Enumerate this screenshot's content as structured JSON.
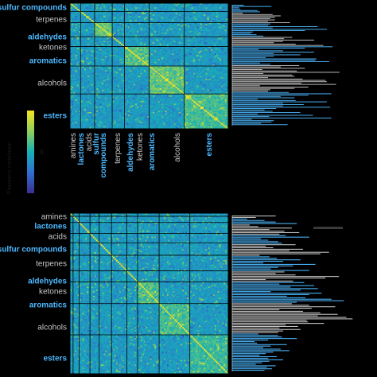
{
  "chart_data": [
    {
      "type": "heatmap",
      "panel": "top",
      "row_groups": [
        {
          "label": "sulfur compounds",
          "color": "#4db8ff",
          "size": 6
        },
        {
          "label": "terpenes",
          "color": "#c8c8c8",
          "size": 8
        },
        {
          "label": "aldehydes",
          "color": "#4db8ff",
          "size": 10
        },
        {
          "label": "ketones",
          "color": "#c8c8c8",
          "size": 7
        },
        {
          "label": "aromatics",
          "color": "#4db8ff",
          "size": 14
        },
        {
          "label": "alcohols",
          "color": "#c8c8c8",
          "size": 20
        },
        {
          "label": "esters",
          "color": "#4db8ff",
          "size": 25
        }
      ],
      "col_groups": [
        {
          "label": "amines",
          "color": "#c8c8c8"
        },
        {
          "label": "lactones",
          "color": "#4db8ff"
        },
        {
          "label": "acids",
          "color": "#c8c8c8"
        },
        {
          "label": "sulfur compounds",
          "color": "#4db8ff"
        },
        {
          "label": "terpenes",
          "color": "#c8c8c8"
        },
        {
          "label": "aldehydes",
          "color": "#4db8ff"
        },
        {
          "label": "ketones",
          "color": "#c8c8c8"
        },
        {
          "label": "aromatics",
          "color": "#4db8ff"
        },
        {
          "label": "alcohols",
          "color": "#c8c8c8"
        },
        {
          "label": "esters",
          "color": "#4db8ff"
        }
      ],
      "col_label_lines": [
        {
          "text": "amines",
          "color": "#c8c8c8"
        },
        {
          "text": "lactones",
          "color": "#4db8ff"
        },
        {
          "text": "acids",
          "color": "#c8c8c8"
        },
        {
          "text": "sulfur",
          "color": "#4db8ff"
        },
        {
          "text": "compounds",
          "color": "#4db8ff"
        },
        {
          "text": "terpenes",
          "color": "#c8c8c8"
        },
        {
          "text": "aldehydes",
          "color": "#4db8ff"
        },
        {
          "text": "ketones",
          "color": "#c8c8c8"
        },
        {
          "text": "aromatics",
          "color": "#4db8ff"
        },
        {
          "text": "alcohols",
          "color": "#c8c8c8"
        },
        {
          "text": "esters",
          "color": "#4db8ff"
        }
      ],
      "colorbar": {
        "label": "Pearson's correlation",
        "tick": "0",
        "colors": [
          "#3a2f8f",
          "#2f6fd1",
          "#17b0b6",
          "#8fcf5a",
          "#f5e51f"
        ]
      },
      "side_bars": {
        "colors": [
          "#4db8ff",
          "#c8c8c8"
        ],
        "values": [
          0.1,
          0.34,
          0.06,
          0.07,
          0.22,
          0.24,
          0.09,
          0.35,
          0.42,
          0.37,
          0.33,
          0.37,
          0.31,
          0.5,
          0.33,
          0.31,
          0.74,
          0.35,
          0.82,
          0.63,
          0.18,
          0.16,
          0.21,
          0.27,
          0.52,
          0.45,
          0.71,
          0.44,
          0.36,
          0.55,
          0.79,
          0.87,
          0.63,
          0.23,
          0.44,
          0.71,
          0.36,
          0.59,
          0.36,
          0.29,
          0.73,
          0.72,
          0.84,
          0.24,
          0.33,
          0.58,
          0.42,
          0.63,
          0.26,
          0.56,
          0.93,
          0.27,
          0.52,
          0.54,
          0.31,
          0.61,
          0.81,
          0.82,
          0.6,
          0.9,
          0.24,
          0.66,
          0.54,
          0.33,
          0.31,
          0.49,
          0.86,
          0.66,
          0.42,
          0.54,
          0.22,
          0.55,
          0.82,
          0.44,
          0.62,
          0.44,
          0.85,
          0.38,
          0.28,
          0.35,
          0.59,
          0.22,
          0.7,
          0.32,
          0.86,
          0.17,
          0.36,
          0.34,
          0.25,
          0.48
        ]
      }
    },
    {
      "type": "heatmap",
      "panel": "bottom",
      "row_groups": [
        {
          "label": "amines",
          "color": "#c8c8c8",
          "size": 2
        },
        {
          "label": "lactones",
          "color": "#4db8ff",
          "size": 4
        },
        {
          "label": "acids",
          "color": "#c8c8c8",
          "size": 7
        },
        {
          "label": "sulfur compounds",
          "color": "#4db8ff",
          "size": 6
        },
        {
          "label": "terpenes",
          "color": "#c8c8c8",
          "size": 8
        },
        {
          "label": "aldehydes",
          "color": "#4db8ff",
          "size": 10
        },
        {
          "label": "ketones",
          "color": "#c8c8c8",
          "size": 7
        },
        {
          "label": "aromatics",
          "color": "#4db8ff",
          "size": 14
        },
        {
          "label": "alcohols",
          "color": "#c8c8c8",
          "size": 20
        },
        {
          "label": "esters",
          "color": "#4db8ff",
          "size": 25
        }
      ],
      "side_bars": {
        "colors": [
          "#4db8ff",
          "#c8c8c8"
        ],
        "values": [
          0.35,
          0.19,
          0.12,
          0.26,
          0.35,
          0.52,
          0.14,
          0.21,
          0.48,
          0.3,
          0.42,
          0.54,
          0.38,
          0.43,
          0.62,
          0.23,
          0.29,
          0.37,
          0.4,
          0.51,
          0.27,
          0.33,
          0.57,
          0.46,
          0.78,
          0.71,
          0.22,
          0.3,
          0.36,
          0.55,
          0.41,
          0.25,
          0.67,
          0.49,
          0.37,
          0.31,
          0.62,
          0.42,
          0.35,
          0.51,
          0.86,
          0.75,
          0.27,
          0.49,
          0.58,
          0.38,
          0.66,
          0.47,
          0.69,
          0.55,
          0.31,
          0.72,
          0.62,
          0.44,
          0.59,
          0.8,
          0.9,
          0.52,
          0.48,
          0.62,
          0.83,
          0.64,
          0.38,
          0.57,
          0.71,
          0.85,
          0.69,
          0.92,
          0.97,
          0.6,
          0.61,
          0.74,
          0.43,
          0.53,
          0.38,
          0.55,
          0.41,
          0.37,
          0.21,
          0.37,
          0.4,
          0.52,
          0.29,
          0.18,
          0.2,
          0.44,
          0.31,
          0.25,
          0.39,
          0.46,
          0.33,
          0.27,
          0.22,
          0.36,
          0.29,
          0.41,
          0.3,
          0.24,
          0.19,
          0.35,
          0.28,
          0.32,
          0.26
        ]
      }
    }
  ]
}
